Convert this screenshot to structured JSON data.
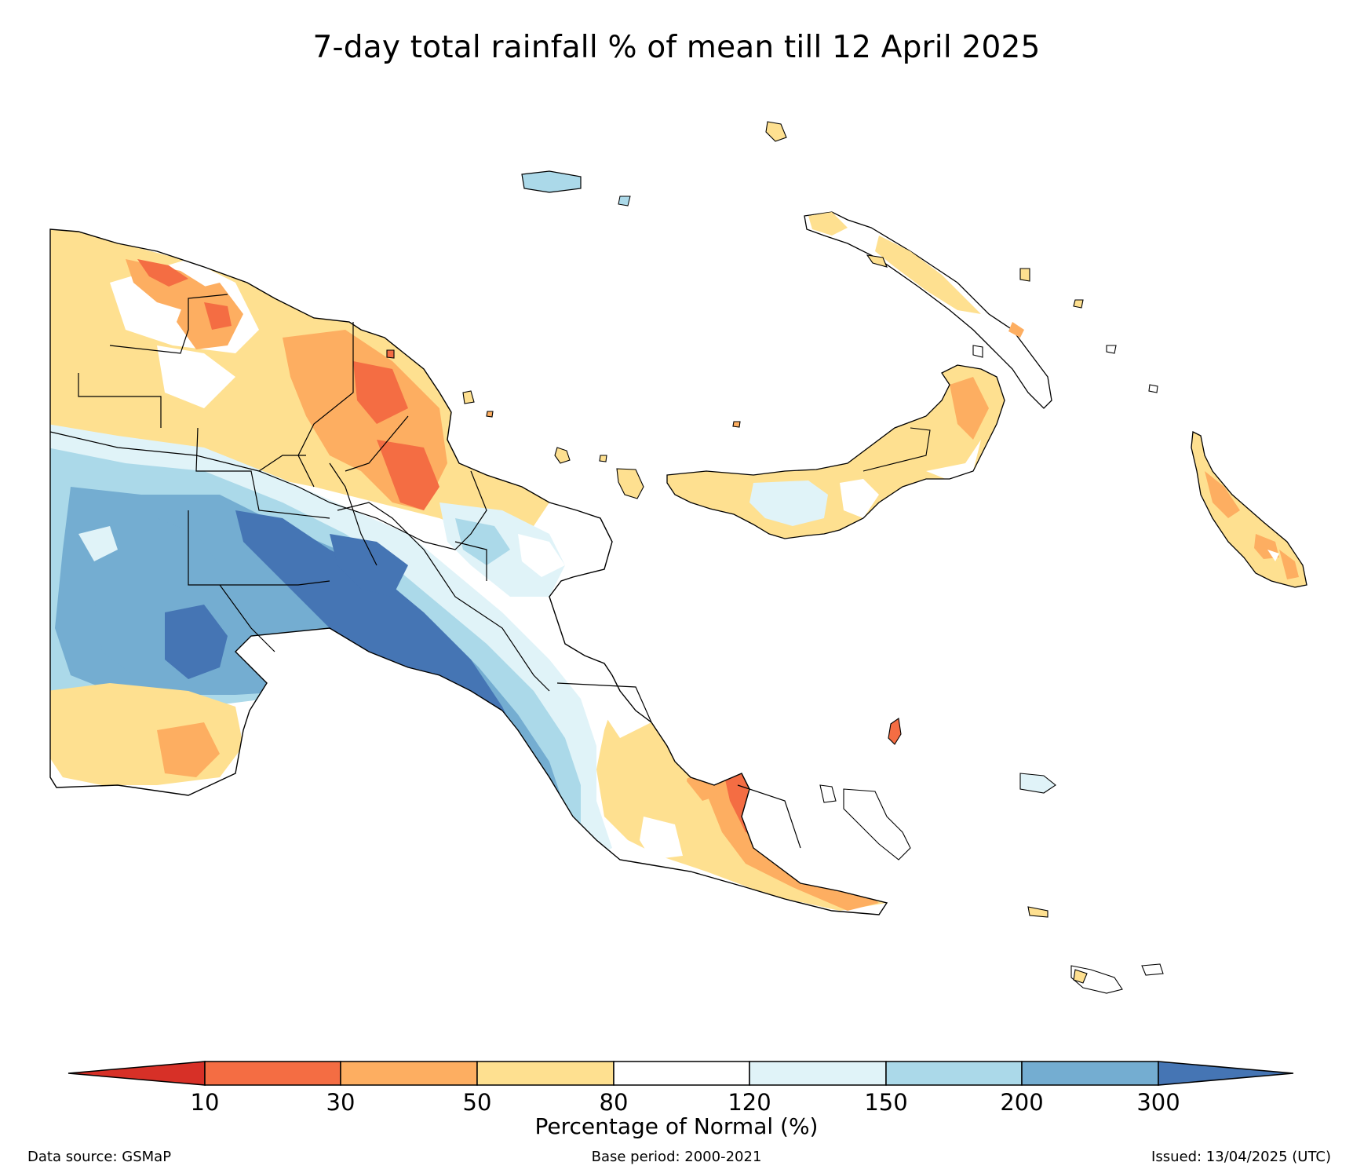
{
  "title": "7-day total rainfall % of mean till 12 April 2025",
  "legend": {
    "title": "Percentage of Normal (%)",
    "ticks": [
      "10",
      "30",
      "50",
      "80",
      "120",
      "150",
      "200",
      "300"
    ],
    "colors": {
      "below_10": "#d73027",
      "10_30": "#f46d43",
      "30_50": "#fdae61",
      "50_80": "#fee090",
      "80_120": "#ffffff",
      "120_150": "#e0f3f8",
      "150_200": "#abd9e9",
      "200_300": "#74add1",
      "above_300": "#4575b4"
    }
  },
  "footer": {
    "source": "Data source: GSMaP",
    "base_period": "Base period: 2000-2021",
    "issued": "Issued: 13/04/2025 (UTC)"
  }
}
